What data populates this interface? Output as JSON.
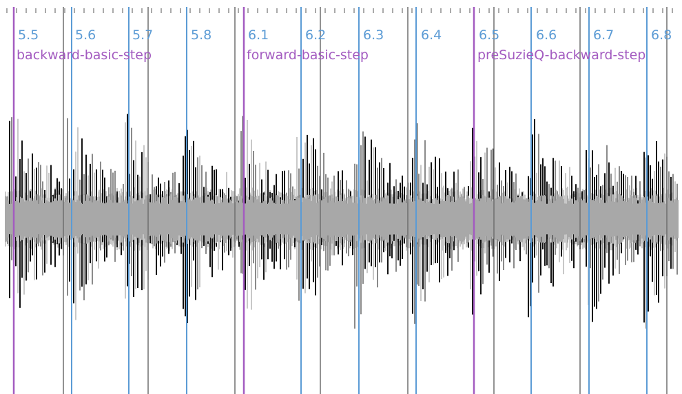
{
  "colors": {
    "background": "#ffffff",
    "beat_marker": "#5b9bd5",
    "step_marker": "#a35bc0",
    "beat_text": "#5b9bd5",
    "step_text": "#a35bc0",
    "waveform_dark": "#111111",
    "waveform_mid": "#8a8a8a",
    "waveform_light": "#c8c8c8",
    "gray_marker": "#6e6e6e"
  },
  "beat_labels": [
    "5.5",
    "5.6",
    "5.7",
    "5.8",
    "6.1",
    "6.2",
    "6.3",
    "6.4",
    "6.5",
    "6.6",
    "6.7",
    "6.8"
  ],
  "step_labels": [
    "backward-basic-step",
    "forward-basic-step",
    "preSuzieQ-backward-step"
  ],
  "waveform": {
    "type": "audio-waveform"
  }
}
